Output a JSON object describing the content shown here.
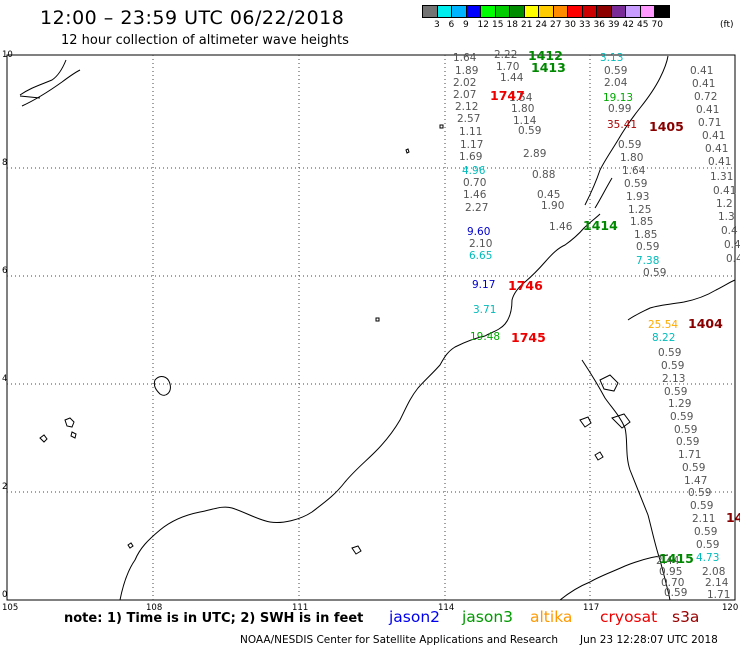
{
  "title": "12:00 – 23:59 UTC 06/22/2018",
  "subtitle": "12 hour collection of altimeter wave heights",
  "legend": {
    "unit": "(ft)",
    "bins": [
      {
        "label": "3",
        "color": "#737373"
      },
      {
        "label": "6",
        "color": "#00eeee"
      },
      {
        "label": "9",
        "color": "#00b4ff"
      },
      {
        "label": "12",
        "color": "#0000ff"
      },
      {
        "label": "15",
        "color": "#00ff00"
      },
      {
        "label": "18",
        "color": "#00cc00"
      },
      {
        "label": "21",
        "color": "#008c00"
      },
      {
        "label": "24",
        "color": "#ffff00"
      },
      {
        "label": "27",
        "color": "#ffcc00"
      },
      {
        "label": "30",
        "color": "#ff8c00"
      },
      {
        "label": "33",
        "color": "#ff0000"
      },
      {
        "label": "36",
        "color": "#cc0000"
      },
      {
        "label": "39",
        "color": "#8c0000"
      },
      {
        "label": "42",
        "color": "#7a2a96"
      },
      {
        "label": "45",
        "color": "#c89bff"
      },
      {
        "label": "70",
        "color": "#ff99ff"
      },
      {
        "label": "",
        "color": "#000000"
      }
    ]
  },
  "axes": {
    "x_ticks": [
      "105",
      "108",
      "111",
      "114",
      "117",
      "120"
    ],
    "y_ticks": [
      "0",
      "2",
      "4",
      "6",
      "8",
      "10"
    ]
  },
  "observations": [
    {
      "text": "1.64",
      "color": "#555555"
    },
    {
      "text": "1.89",
      "color": "#555555"
    },
    {
      "text": "2.02",
      "color": "#555555"
    },
    {
      "text": "2.07",
      "color": "#555555"
    },
    {
      "text": "2.12",
      "color": "#555555"
    },
    {
      "text": "2.57",
      "color": "#555555"
    },
    {
      "text": "1.11",
      "color": "#555555"
    },
    {
      "text": "1.17",
      "color": "#555555"
    },
    {
      "text": "1.69",
      "color": "#555555"
    },
    {
      "text": "4.96",
      "color": "#00bbbb"
    },
    {
      "text": "0.70",
      "color": "#555555"
    },
    {
      "text": "1.46",
      "color": "#555555"
    },
    {
      "text": "2.27",
      "color": "#555555"
    },
    {
      "text": "9.60",
      "color": "#0000cc"
    },
    {
      "text": "2.10",
      "color": "#555555"
    },
    {
      "text": "6.65",
      "color": "#00bbbb"
    },
    {
      "text": "9.17",
      "color": "#0000cc"
    },
    {
      "text": "3.71",
      "color": "#00bbbb"
    },
    {
      "text": "19.48",
      "color": "#00aa00"
    },
    {
      "text": "2.22",
      "color": "#555555"
    },
    {
      "text": "1.70",
      "color": "#555555"
    },
    {
      "text": "1.44",
      "color": "#555555"
    },
    {
      "text": "1.54",
      "color": "#555555"
    },
    {
      "text": "1.80",
      "color": "#555555"
    },
    {
      "text": "1.14",
      "color": "#555555"
    },
    {
      "text": "0.59",
      "color": "#555555"
    },
    {
      "text": "2.89",
      "color": "#555555"
    },
    {
      "text": "0.88",
      "color": "#555555"
    },
    {
      "text": "0.45",
      "color": "#555555"
    },
    {
      "text": "1.90",
      "color": "#555555"
    },
    {
      "text": "1.46",
      "color": "#555555"
    },
    {
      "text": "3.13",
      "color": "#00bbbb"
    },
    {
      "text": "0.59",
      "color": "#555555"
    },
    {
      "text": "2.04",
      "color": "#555555"
    },
    {
      "text": "19.13",
      "color": "#00aa00"
    },
    {
      "text": "0.99",
      "color": "#555555"
    },
    {
      "text": "35.41",
      "color": "#aa0000"
    },
    {
      "text": "0.59",
      "color": "#555555"
    },
    {
      "text": "1.80",
      "color": "#555555"
    },
    {
      "text": "1.64",
      "color": "#555555"
    },
    {
      "text": "0.59",
      "color": "#555555"
    },
    {
      "text": "1.93",
      "color": "#555555"
    },
    {
      "text": "1.25",
      "color": "#555555"
    },
    {
      "text": "1.85",
      "color": "#555555"
    },
    {
      "text": "1.85",
      "color": "#555555"
    },
    {
      "text": "0.59",
      "color": "#555555"
    },
    {
      "text": "7.38",
      "color": "#00bbbb"
    },
    {
      "text": "0.59",
      "color": "#555555"
    },
    {
      "text": "25.54",
      "color": "#ffaa00"
    },
    {
      "text": "8.22",
      "color": "#00bbbb"
    },
    {
      "text": "0.59",
      "color": "#555555"
    },
    {
      "text": "0.59",
      "color": "#555555"
    },
    {
      "text": "2.13",
      "color": "#555555"
    },
    {
      "text": "0.59",
      "color": "#555555"
    },
    {
      "text": "1.29",
      "color": "#555555"
    },
    {
      "text": "0.59",
      "color": "#555555"
    },
    {
      "text": "0.59",
      "color": "#555555"
    },
    {
      "text": "0.59",
      "color": "#555555"
    },
    {
      "text": "1.71",
      "color": "#555555"
    },
    {
      "text": "0.59",
      "color": "#555555"
    },
    {
      "text": "1.47",
      "color": "#555555"
    },
    {
      "text": "0.59",
      "color": "#555555"
    },
    {
      "text": "0.59",
      "color": "#555555"
    },
    {
      "text": "2.11",
      "color": "#555555"
    },
    {
      "text": "0.59",
      "color": "#555555"
    },
    {
      "text": "0.59",
      "color": "#555555"
    },
    {
      "text": "4.73",
      "color": "#00bbbb"
    },
    {
      "text": "2.44",
      "color": "#555555"
    },
    {
      "text": "0.95",
      "color": "#555555"
    },
    {
      "text": "0.70",
      "color": "#555555"
    },
    {
      "text": "0.59",
      "color": "#555555"
    },
    {
      "text": "2.08",
      "color": "#555555"
    },
    {
      "text": "2.14",
      "color": "#555555"
    },
    {
      "text": "1.71",
      "color": "#555555"
    },
    {
      "text": "0.41",
      "color": "#555555"
    },
    {
      "text": "0.41",
      "color": "#555555"
    },
    {
      "text": "0.72",
      "color": "#555555"
    },
    {
      "text": "0.41",
      "color": "#555555"
    },
    {
      "text": "0.71",
      "color": "#555555"
    },
    {
      "text": "0.41",
      "color": "#555555"
    },
    {
      "text": "0.41",
      "color": "#555555"
    },
    {
      "text": "0.41",
      "color": "#555555"
    },
    {
      "text": "1.31",
      "color": "#555555"
    },
    {
      "text": "0.41",
      "color": "#555555"
    },
    {
      "text": "1.2",
      "color": "#555555"
    },
    {
      "text": "1.3",
      "color": "#555555"
    },
    {
      "text": "0.4",
      "color": "#555555"
    },
    {
      "text": "0.4",
      "color": "#555555"
    },
    {
      "text": "0.4",
      "color": "#555555"
    }
  ],
  "pass_labels": [
    {
      "text": "1412",
      "color": "#008800"
    },
    {
      "text": "1413",
      "color": "#008800"
    },
    {
      "text": "1747",
      "color": "#ee0000"
    },
    {
      "text": "1405",
      "color": "#880000"
    },
    {
      "text": "1414",
      "color": "#008800"
    },
    {
      "text": "1746",
      "color": "#ee0000"
    },
    {
      "text": "1745",
      "color": "#ee0000"
    },
    {
      "text": "1404",
      "color": "#880000"
    },
    {
      "text": "1415",
      "color": "#008800"
    },
    {
      "text": "14",
      "color": "#880000"
    }
  ],
  "footer": {
    "note": "note:  1) Time is in UTC;  2) SWH is in feet",
    "satellites": [
      {
        "name": "jason2",
        "color": "#0000ee"
      },
      {
        "name": "jason3",
        "color": "#009900"
      },
      {
        "name": "altika",
        "color": "#ff9900"
      },
      {
        "name": "cryosat",
        "color": "#ee0000"
      },
      {
        "name": "s3a",
        "color": "#990000"
      }
    ],
    "credit": "NOAA/NESDIS Center for Satellite Applications and Research",
    "timestamp": "Jun 23 12:28:07 UTC 2018"
  }
}
